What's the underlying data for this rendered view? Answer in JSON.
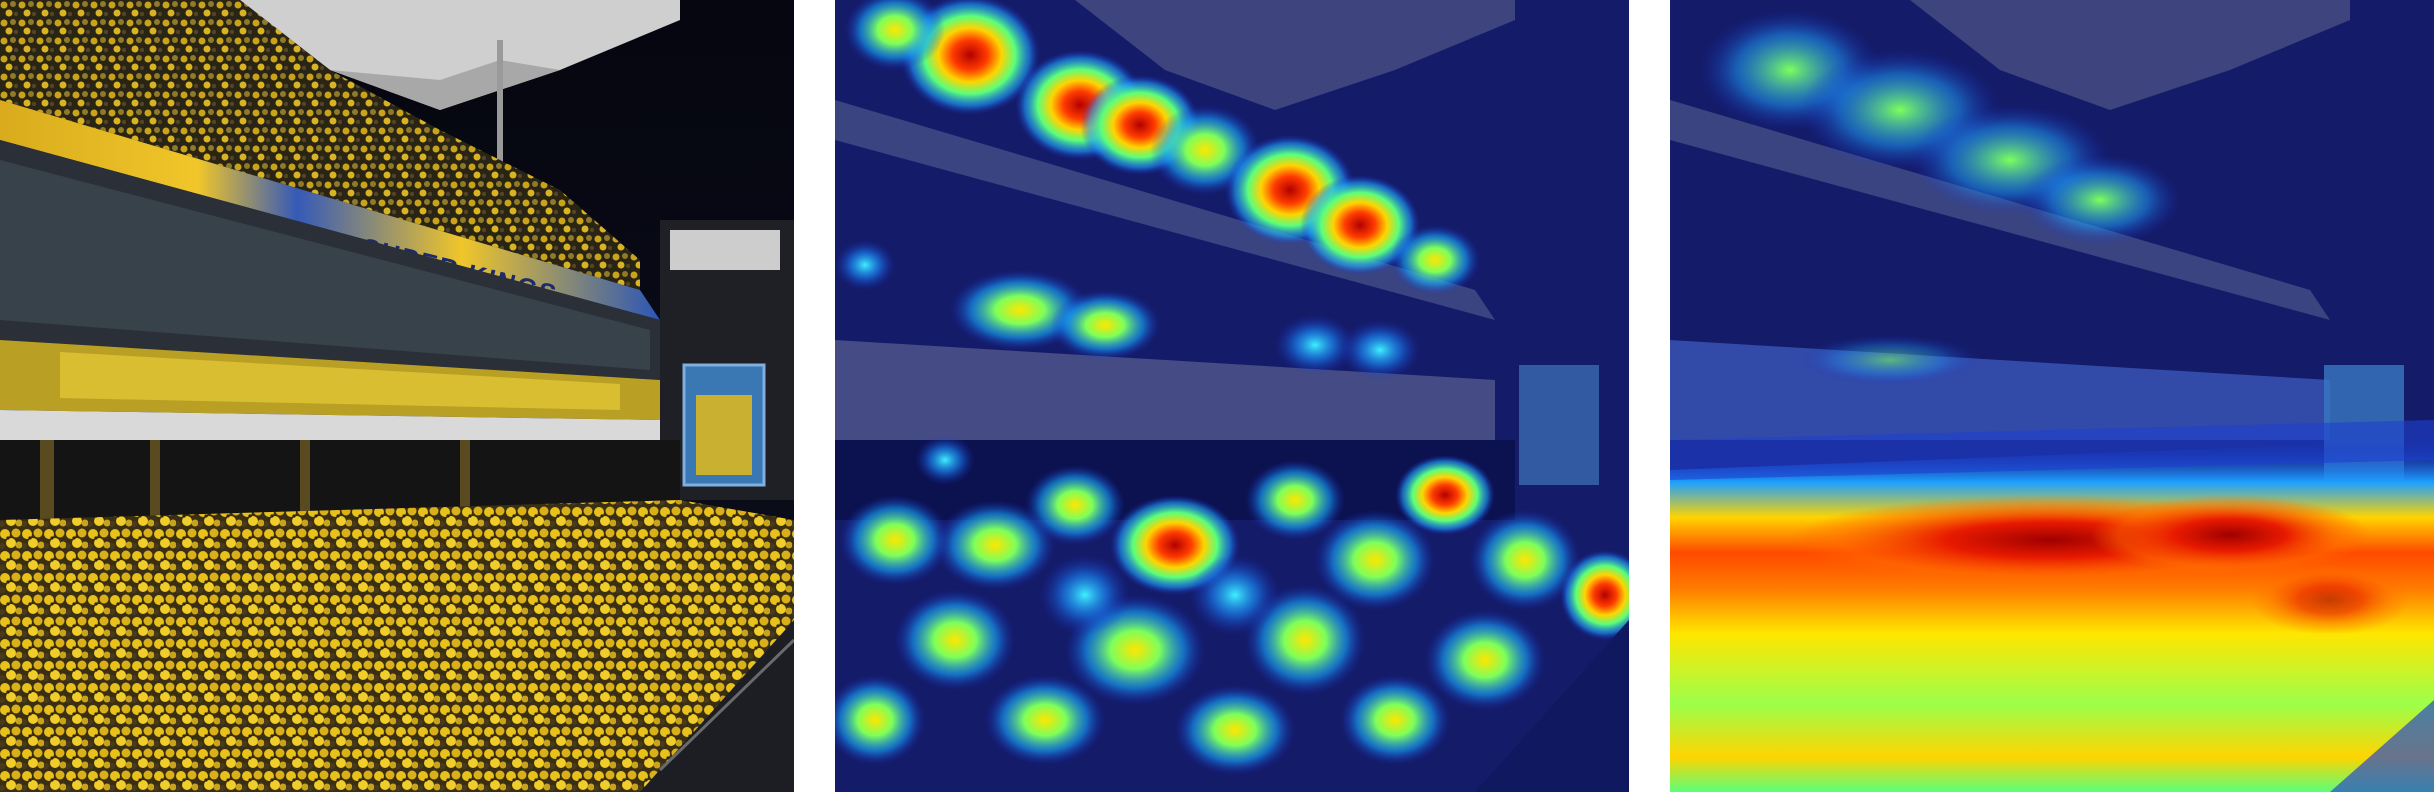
{
  "figure": {
    "panel_count": 3,
    "panels": [
      {
        "id": "original",
        "description_kind": "photo"
      },
      {
        "id": "heatmap-1",
        "description_kind": "attention-overlay"
      },
      {
        "id": "heatmap-2",
        "description_kind": "attention-overlay"
      }
    ]
  },
  "scene": {
    "stand_banner_text": "SUPER KINGS",
    "lower_banner_text": "",
    "screen_label": ""
  },
  "colors": {
    "crowd_yellow": "#e8c21a",
    "banner_yellow": "#f2c523",
    "banner_blue": "#2b55b8",
    "night_sky": "#050712",
    "jet_blue": "#1a2cc8",
    "jet_red": "#c81414"
  }
}
